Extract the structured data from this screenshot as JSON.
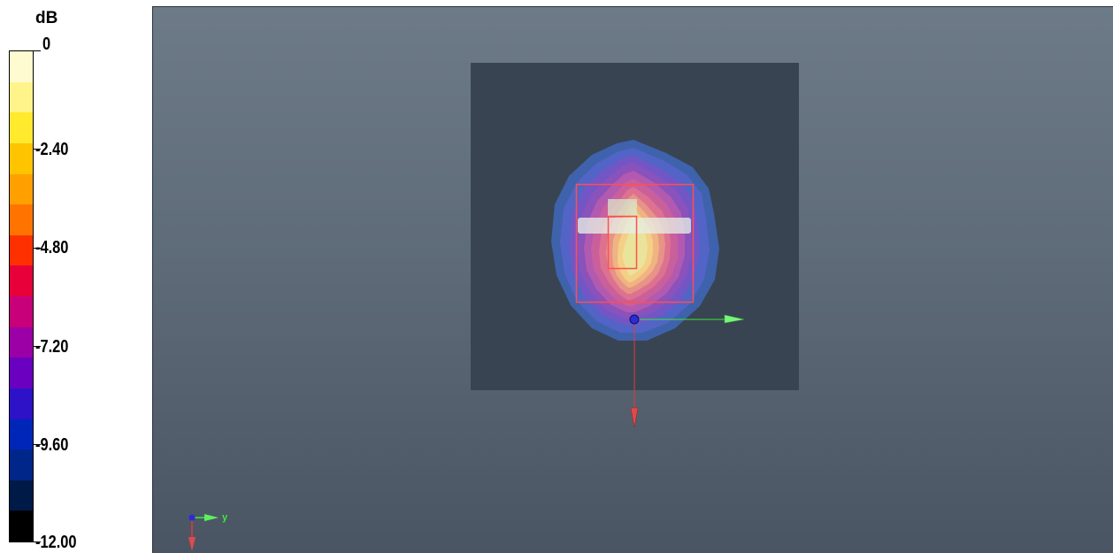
{
  "legend": {
    "unit": "dB",
    "labels": [
      "0",
      "-2.40",
      "-4.80",
      "-7.20",
      "-9.60",
      "-12.00"
    ],
    "colors": [
      "#fffbd0",
      "#fff48a",
      "#ffea2e",
      "#ffc400",
      "#ffa000",
      "#ff7400",
      "#ff3000",
      "#e8003a",
      "#c8007a",
      "#9a00a6",
      "#6a00c0",
      "#2d12c8",
      "#0026b8",
      "#00268a",
      "#001a48",
      "#000000"
    ]
  },
  "viewport": {
    "background_top": "#6d7a88",
    "background_bottom": "#4a5563",
    "plane_color": "#394453",
    "box_color": "#ff4f4f",
    "axis_labels": {
      "y": "y"
    },
    "axis_colors": {
      "x": "#e13a3a",
      "y": "#3ee63e",
      "z": "#2b2bd8"
    }
  }
}
